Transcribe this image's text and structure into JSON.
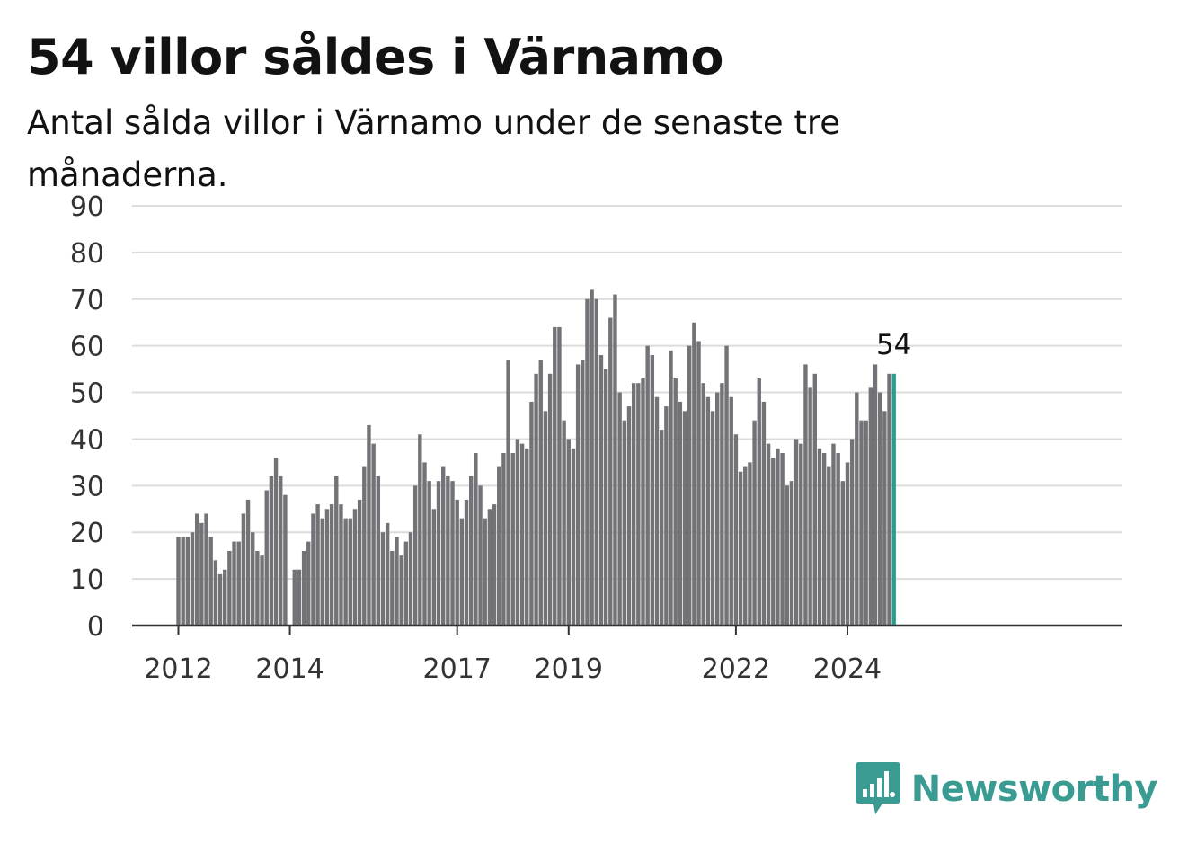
{
  "header": {
    "title": "54 villor såldes i Värnamo",
    "subtitle": "Antal sålda villor i Värnamo under de senaste tre månaderna."
  },
  "colors": {
    "bar": "#737277",
    "highlight": "#2a9d8f",
    "grid": "#dcdcdc",
    "axis": "#333333",
    "brand": "#3a9b93"
  },
  "brand": {
    "name": "Newsworthy",
    "icon": "bar-chart-badge-icon"
  },
  "chart_data": {
    "type": "bar",
    "title": "",
    "xlabel": "",
    "ylabel": "",
    "ylim": [
      0,
      90
    ],
    "yticks": [
      0,
      10,
      20,
      30,
      40,
      50,
      60,
      70,
      80,
      90
    ],
    "grid": true,
    "legend": "none",
    "x_start": "2012-01",
    "xticks": [
      {
        "label": "2012",
        "date": "2012-01"
      },
      {
        "label": "2014",
        "date": "2014-01"
      },
      {
        "label": "2017",
        "date": "2017-01"
      },
      {
        "label": "2019",
        "date": "2019-01"
      },
      {
        "label": "2022",
        "date": "2022-01"
      },
      {
        "label": "2024",
        "date": "2024-01"
      }
    ],
    "values": [
      19,
      19,
      19,
      20,
      24,
      22,
      24,
      19,
      14,
      11,
      12,
      16,
      18,
      18,
      24,
      27,
      20,
      16,
      15,
      29,
      32,
      36,
      32,
      28,
      null,
      12,
      12,
      16,
      18,
      24,
      26,
      23,
      25,
      26,
      32,
      26,
      23,
      23,
      25,
      27,
      34,
      43,
      39,
      32,
      20,
      22,
      16,
      19,
      15,
      18,
      20,
      30,
      41,
      35,
      31,
      25,
      31,
      34,
      32,
      31,
      27,
      23,
      27,
      32,
      37,
      30,
      23,
      25,
      26,
      34,
      37,
      57,
      37,
      40,
      39,
      38,
      48,
      54,
      57,
      46,
      54,
      64,
      64,
      44,
      40,
      38,
      56,
      57,
      70,
      72,
      70,
      58,
      55,
      66,
      71,
      50,
      44,
      47,
      52,
      52,
      53,
      60,
      58,
      49,
      42,
      47,
      59,
      53,
      48,
      46,
      60,
      65,
      61,
      52,
      49,
      46,
      50,
      52,
      60,
      49,
      41,
      33,
      34,
      35,
      44,
      53,
      48,
      39,
      36,
      38,
      37,
      30,
      31,
      40,
      39,
      56,
      51,
      54,
      38,
      37,
      34,
      39,
      37,
      31,
      35,
      40,
      50,
      44,
      44,
      51,
      56,
      50,
      46,
      54,
      54
    ],
    "highlight_last": true,
    "annotations": [
      {
        "text": "54",
        "target": "last"
      }
    ]
  }
}
